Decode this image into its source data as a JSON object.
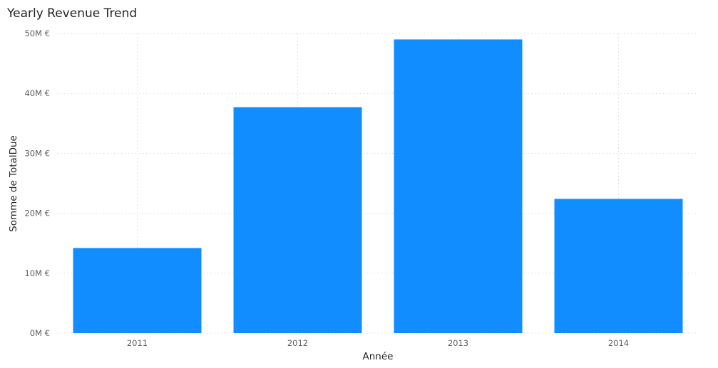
{
  "chart_data": {
    "type": "bar",
    "title": "Yearly Revenue Trend",
    "xlabel": "Année",
    "ylabel": "Somme de TotalDue",
    "categories": [
      "2011",
      "2012",
      "2013",
      "2014"
    ],
    "values": [
      14.2,
      37.7,
      49.0,
      22.4
    ],
    "unit": "M €",
    "ylim": [
      0,
      50
    ],
    "yticks": [
      0,
      10,
      20,
      30,
      40,
      50
    ],
    "ytick_labels": [
      "0M €",
      "10M €",
      "20M €",
      "30M €",
      "40M €",
      "50M €"
    ],
    "grid": true,
    "bar_color": "#118dff",
    "grid_color": "#d9d9d9",
    "text_color": "#252423",
    "tick_color": "#605e5c"
  }
}
